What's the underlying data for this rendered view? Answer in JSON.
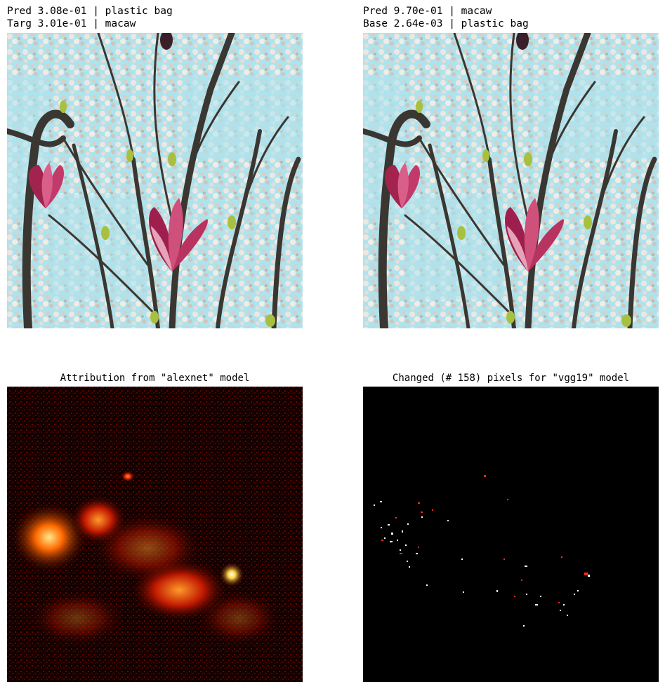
{
  "panels": {
    "top_left": {
      "line1": "Pred 3.08e-01 | plastic bag",
      "line2": "Targ 3.01e-01 | macaw",
      "image": "magnolia-photo"
    },
    "top_right": {
      "line1": "Pred 9.70e-01 | macaw",
      "line2": "Base 2.64e-03 | plastic bag",
      "image": "magnolia-photo"
    },
    "bottom_left": {
      "title": "Attribution from \"alexnet\" model",
      "image": "attribution-heatmap"
    },
    "bottom_right": {
      "title": "Changed (# 158) pixels for \"vgg19\" model",
      "image": "changed-pixels-map"
    }
  },
  "colors": {
    "sky": "#aee3ee",
    "blossom": "#e8e0d6",
    "branch": "#3a3631",
    "petal": "#b02b5a",
    "heat_low": "#3a0000",
    "heat_mid": "#d42a00",
    "heat_high": "#ffe88a",
    "changed_red": "#ff2a1a",
    "changed_white": "#ffffff"
  }
}
